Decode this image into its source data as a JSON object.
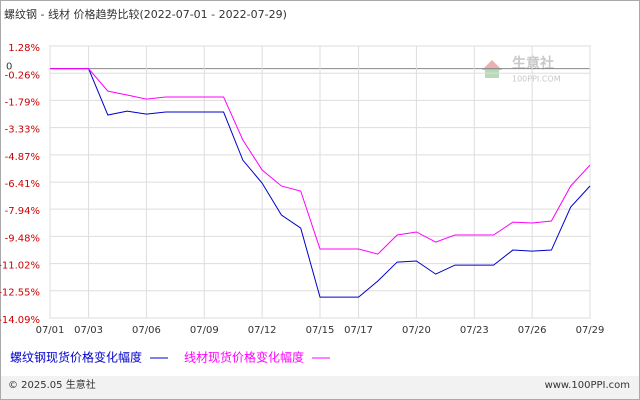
{
  "chart_data": {
    "type": "line",
    "title": "螺纹钢 - 线材 价格趋势比较(2022-07-01 - 2022-07-29)",
    "categories": [
      "07/01",
      null,
      "07/03",
      null,
      null,
      "07/06",
      null,
      null,
      "07/09",
      null,
      null,
      "07/12",
      null,
      null,
      "07/15",
      null,
      "07/17",
      null,
      null,
      "07/20",
      null,
      null,
      "07/23",
      null,
      null,
      "07/26",
      null,
      null,
      "07/29"
    ],
    "series": [
      {
        "name": "螺纹钢现货价格变化幅度",
        "color": "#0000cc",
        "values": [
          0,
          0,
          0,
          -2.62,
          -2.4,
          -2.57,
          -2.45,
          -2.45,
          -2.45,
          -2.45,
          -5.17,
          -6.47,
          -8.27,
          -9.01,
          -12.91,
          -12.91,
          -12.91,
          -12.0,
          -10.93,
          -10.87,
          -11.61,
          -11.1,
          -11.1,
          -11.1,
          -10.25,
          -10.31,
          -10.25,
          -7.82,
          -6.63
        ]
      },
      {
        "name": "线材现货价格变化幅度",
        "color": "#ff00ff",
        "values": [
          0,
          0,
          0,
          -1.27,
          -1.49,
          -1.72,
          -1.6,
          -1.6,
          -1.6,
          -1.6,
          -4.03,
          -5.73,
          -6.63,
          -6.92,
          -10.19,
          -10.19,
          -10.19,
          -10.48,
          -9.4,
          -9.23,
          -9.8,
          -9.4,
          -9.4,
          -9.4,
          -8.67,
          -8.72,
          -8.61,
          -6.63,
          -5.45
        ]
      }
    ],
    "ylim": [
      -14.09,
      1.28
    ],
    "yticks": [
      {
        "value": 1.28,
        "label": "1.28%"
      },
      {
        "value": -0.26,
        "label": "-0.26%"
      },
      {
        "value": -1.79,
        "label": "-1.79%"
      },
      {
        "value": -3.33,
        "label": "-3.33%"
      },
      {
        "value": -4.87,
        "label": "-4.87%"
      },
      {
        "value": -6.41,
        "label": "-6.41%"
      },
      {
        "value": -7.94,
        "label": "-7.94%"
      },
      {
        "value": -9.48,
        "label": "-9.48%"
      },
      {
        "value": -11.02,
        "label": "-11.02%"
      },
      {
        "value": -12.55,
        "label": "-12.55%"
      },
      {
        "value": -14.09,
        "label": "-14.09%"
      }
    ],
    "baseline": 0,
    "grid": true,
    "watermark": "生意社",
    "watermark_sub": "100PPI.COM",
    "footer_left": "© 2025.05 生意社",
    "footer_right": "www.100PPI.com"
  }
}
